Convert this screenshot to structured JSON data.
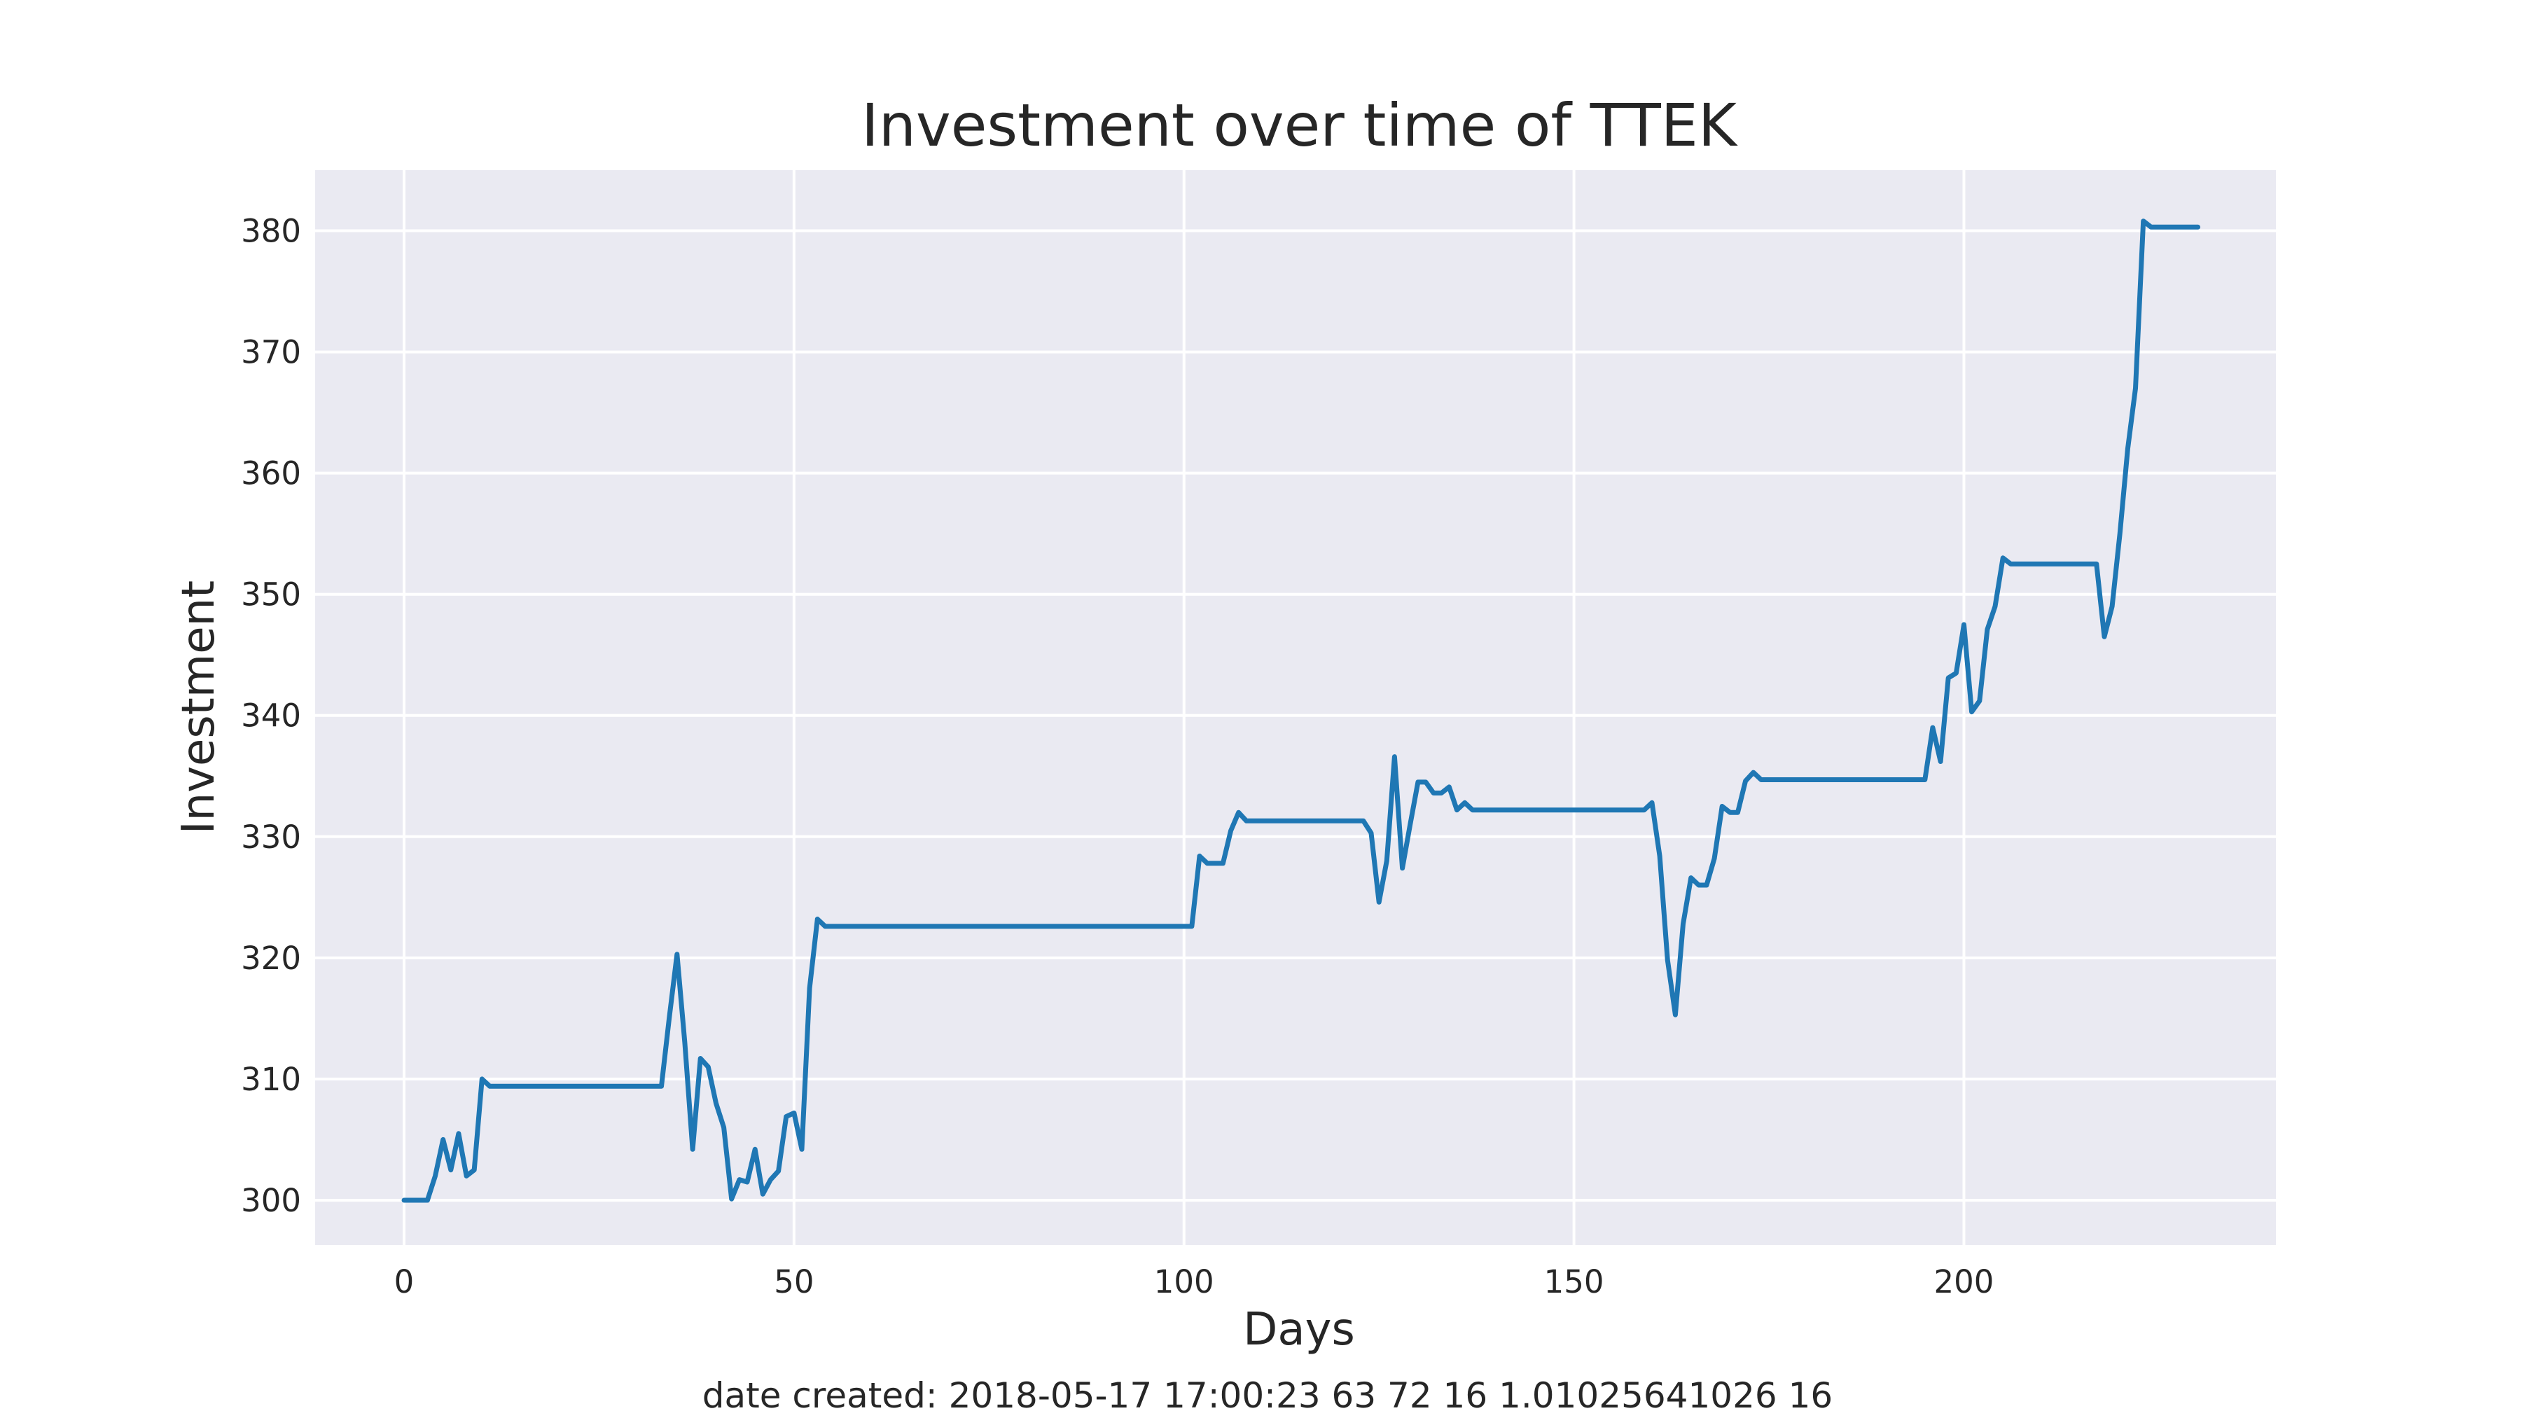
{
  "chart_data": {
    "type": "line",
    "title": "Investment over time of TTEK",
    "xlabel": "Days",
    "ylabel": "Investment",
    "xlim": [
      -11.4,
      240
    ],
    "ylim": [
      296.3,
      385
    ],
    "xticks": [
      0,
      50,
      100,
      150,
      200
    ],
    "yticks": [
      300,
      310,
      320,
      330,
      340,
      350,
      360,
      370,
      380
    ],
    "grid": true,
    "background_color": "#eaeaf2",
    "grid_color": "#ffffff",
    "series": [
      {
        "color": "#1f77b4",
        "points": [
          [
            0,
            300
          ],
          [
            3,
            300
          ],
          [
            4,
            302
          ],
          [
            5,
            305
          ],
          [
            6,
            302.5
          ],
          [
            7,
            305.5
          ],
          [
            8,
            302
          ],
          [
            9,
            302.5
          ],
          [
            10,
            310
          ],
          [
            11,
            309.4
          ],
          [
            12,
            309.4
          ],
          [
            33,
            309.4
          ],
          [
            34,
            315
          ],
          [
            35,
            320.3
          ],
          [
            36,
            313
          ],
          [
            37,
            304.2
          ],
          [
            38,
            311.7
          ],
          [
            39,
            311
          ],
          [
            40,
            308
          ],
          [
            41,
            306
          ],
          [
            42,
            300.1
          ],
          [
            43,
            301.7
          ],
          [
            44,
            301.5
          ],
          [
            45,
            304.2
          ],
          [
            46,
            300.5
          ],
          [
            47,
            301.7
          ],
          [
            48,
            302.4
          ],
          [
            49,
            306.9
          ],
          [
            50,
            307.2
          ],
          [
            51,
            304.2
          ],
          [
            52,
            317.5
          ],
          [
            53,
            323.2
          ],
          [
            54,
            322.6
          ],
          [
            101,
            322.6
          ],
          [
            102,
            328.4
          ],
          [
            103,
            327.8
          ],
          [
            105,
            327.8
          ],
          [
            106,
            330.5
          ],
          [
            107,
            332
          ],
          [
            108,
            331.3
          ],
          [
            123,
            331.3
          ],
          [
            124,
            330.3
          ],
          [
            125,
            324.6
          ],
          [
            126,
            328
          ],
          [
            127,
            336.6
          ],
          [
            128,
            327.4
          ],
          [
            129,
            331
          ],
          [
            130,
            334.5
          ],
          [
            131,
            334.5
          ],
          [
            132,
            333.6
          ],
          [
            133,
            333.6
          ],
          [
            134,
            334.1
          ],
          [
            135,
            332.2
          ],
          [
            136,
            332.8
          ],
          [
            137,
            332.2
          ],
          [
            159,
            332.2
          ],
          [
            160,
            332.8
          ],
          [
            161,
            328.4
          ],
          [
            162,
            319.8
          ],
          [
            163,
            315.3
          ],
          [
            164,
            322.8
          ],
          [
            165,
            326.6
          ],
          [
            166,
            326
          ],
          [
            167,
            326
          ],
          [
            168,
            328.2
          ],
          [
            169,
            332.5
          ],
          [
            170,
            332
          ],
          [
            171,
            332
          ],
          [
            172,
            334.6
          ],
          [
            173,
            335.3
          ],
          [
            174,
            334.7
          ],
          [
            195,
            334.7
          ],
          [
            196,
            339
          ],
          [
            197,
            336.2
          ],
          [
            198,
            343.1
          ],
          [
            199,
            343.5
          ],
          [
            200,
            347.5
          ],
          [
            201,
            340.3
          ],
          [
            202,
            341.2
          ],
          [
            203,
            347.1
          ],
          [
            204,
            349
          ],
          [
            205,
            353
          ],
          [
            206,
            352.5
          ],
          [
            217,
            352.5
          ],
          [
            218,
            346.5
          ],
          [
            219,
            349
          ],
          [
            220,
            355
          ],
          [
            221,
            362
          ],
          [
            222,
            367
          ],
          [
            223,
            380.8
          ],
          [
            224,
            380.3
          ],
          [
            230,
            380.3
          ]
        ]
      }
    ]
  },
  "footer": "date created: 2018-05-17 17:00:23 63 72 16 1.01025641026 16"
}
